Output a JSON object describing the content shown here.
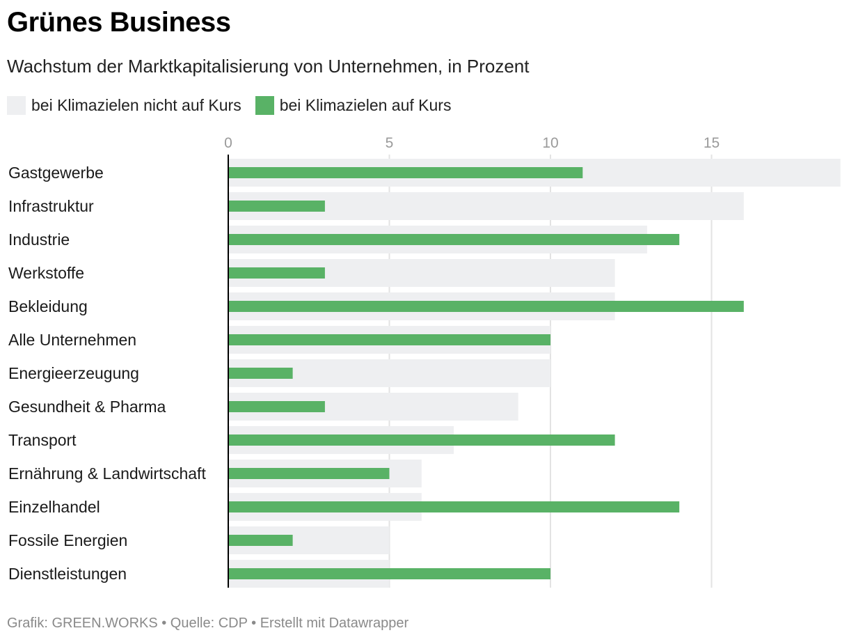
{
  "header": {
    "title": "Grünes Business",
    "subtitle": "Wachstum der Marktkapitalisierung von Unternehmen, in Prozent"
  },
  "legend": [
    {
      "label": "bei Klimazielen nicht auf Kurs",
      "color": "#eeeff1"
    },
    {
      "label": "bei Klimazielen auf Kurs",
      "color": "#59b266"
    }
  ],
  "footer": {
    "text": "Grafik: GREEN.WORKS • Quelle: CDP • Erstellt mit Datawrapper"
  },
  "chart_data": {
    "type": "bar",
    "orientation": "horizontal",
    "categories": [
      "Gastgewerbe",
      "Infrastruktur",
      "Industrie",
      "Werkstoffe",
      "Bekleidung",
      "Alle Unternehmen",
      "Energieerzeugung",
      "Gesundheit & Pharma",
      "Transport",
      "Ernährung & Landwirtschaft",
      "Einzelhandel",
      "Fossile Energien",
      "Dienstleistungen"
    ],
    "series": [
      {
        "name": "bei Klimazielen nicht auf Kurs",
        "color": "#eeeff1",
        "values": [
          19,
          16,
          13,
          12,
          12,
          10,
          10,
          9,
          7,
          6,
          6,
          5,
          5
        ]
      },
      {
        "name": "bei Klimazielen auf Kurs",
        "color": "#59b266",
        "values": [
          11,
          3,
          14,
          3,
          16,
          10,
          2,
          3,
          12,
          5,
          14,
          2,
          10
        ]
      }
    ],
    "x_ticks": [
      "0",
      "5",
      "10",
      "15"
    ],
    "xlim": [
      0,
      19
    ],
    "grid": true,
    "legend_position": "top-left"
  }
}
